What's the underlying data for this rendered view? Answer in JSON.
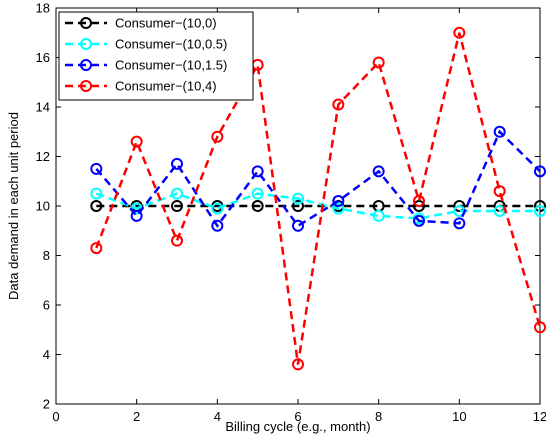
{
  "chart_data": {
    "type": "line",
    "xlabel": "Billing cycle (e.g., month)",
    "ylabel": "Data demand in each unit period",
    "xlim": [
      0,
      12
    ],
    "ylim": [
      2,
      18
    ],
    "xticks": [
      0,
      2,
      4,
      6,
      8,
      10,
      12
    ],
    "yticks": [
      2,
      4,
      6,
      8,
      10,
      12,
      14,
      16,
      18
    ],
    "grid": false,
    "legend_position": "top-left",
    "x": [
      1,
      2,
      3,
      4,
      5,
      6,
      7,
      8,
      9,
      10,
      11,
      12
    ],
    "series": [
      {
        "name": "Consumer−(10,0)",
        "color": "#000000",
        "marker": "circle",
        "linestyle": "dashed",
        "values": [
          10,
          10,
          10,
          10,
          10,
          10,
          10,
          10,
          10,
          10,
          10,
          10
        ]
      },
      {
        "name": "Consumer−(10,0.5)",
        "color": "#00ffff",
        "marker": "circle",
        "linestyle": "dashed",
        "values": [
          10.5,
          9.9,
          10.5,
          9.9,
          10.5,
          10.3,
          9.9,
          9.6,
          9.5,
          9.8,
          9.8,
          9.8
        ]
      },
      {
        "name": "Consumer−(10,1.5)",
        "color": "#0000ff",
        "marker": "circle",
        "linestyle": "dashed",
        "values": [
          11.5,
          9.6,
          11.7,
          9.2,
          11.4,
          9.2,
          10.2,
          11.4,
          9.4,
          9.3,
          13.0,
          11.4
        ]
      },
      {
        "name": "Consumer−(10,4)",
        "color": "#ff0000",
        "marker": "circle",
        "linestyle": "dashed",
        "values": [
          8.3,
          12.6,
          8.6,
          12.8,
          15.7,
          3.6,
          14.1,
          15.8,
          10.2,
          17.0,
          10.6,
          5.1
        ]
      }
    ]
  }
}
